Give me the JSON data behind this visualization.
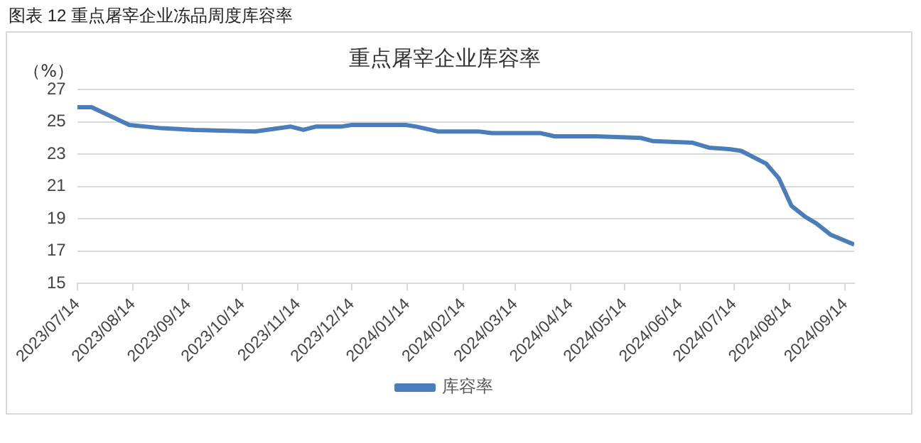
{
  "chart_data": {
    "type": "line",
    "title": "重点屠宰企业库容率",
    "ylabel": "（%）",
    "annotations": [
      "图表 12  重点屠宰企业冻品周度库容率"
    ],
    "x": [
      "2023-07-14",
      "2023-07-22",
      "2023-08-12",
      "2023-08-30",
      "2023-09-17",
      "2023-10-21",
      "2023-11-10",
      "2023-11-17",
      "2023-11-24",
      "2023-12-08",
      "2023-12-14",
      "2024-01-13",
      "2024-01-19",
      "2024-01-31",
      "2024-02-23",
      "2024-03-01",
      "2024-03-28",
      "2024-04-05",
      "2024-04-28",
      "2024-05-23",
      "2024-05-30",
      "2024-06-21",
      "2024-06-30",
      "2024-07-12",
      "2024-07-18",
      "2024-08-01",
      "2024-08-08",
      "2024-08-15",
      "2024-08-23",
      "2024-08-29",
      "2024-09-06",
      "2024-09-19"
    ],
    "series": [
      {
        "name": "库容率",
        "color": "#4a7ebb",
        "values": [
          25.9,
          25.9,
          24.8,
          24.6,
          24.5,
          24.4,
          24.7,
          24.5,
          24.7,
          24.7,
          24.8,
          24.8,
          24.7,
          24.4,
          24.4,
          24.3,
          24.3,
          24.1,
          24.1,
          24.0,
          23.8,
          23.7,
          23.4,
          23.3,
          23.2,
          22.4,
          21.5,
          19.8,
          19.1,
          18.7,
          18.0,
          17.4
        ]
      }
    ],
    "xlim": [
      "2023-07-14",
      "2024-09-19"
    ],
    "xticks": [
      {
        "value": "2023-07-14",
        "label": "2023/07/14"
      },
      {
        "value": "2023-08-14",
        "label": "2023/08/14"
      },
      {
        "value": "2023-09-14",
        "label": "2023/09/14"
      },
      {
        "value": "2023-10-14",
        "label": "2023/10/14"
      },
      {
        "value": "2023-11-14",
        "label": "2023/11/14"
      },
      {
        "value": "2023-12-14",
        "label": "2023/12/14"
      },
      {
        "value": "2024-01-14",
        "label": "2024/01/14"
      },
      {
        "value": "2024-02-14",
        "label": "2024/02/14"
      },
      {
        "value": "2024-03-14",
        "label": "2024/03/14"
      },
      {
        "value": "2024-04-14",
        "label": "2024/04/14"
      },
      {
        "value": "2024-05-14",
        "label": "2024/05/14"
      },
      {
        "value": "2024-06-14",
        "label": "2024/06/14"
      },
      {
        "value": "2024-07-14",
        "label": "2024/07/14"
      },
      {
        "value": "2024-08-14",
        "label": "2024/08/14"
      },
      {
        "value": "2024-09-14",
        "label": "2024/09/14"
      }
    ],
    "ylim": [
      15,
      27
    ],
    "yticks": [
      15,
      17,
      19,
      21,
      23,
      25,
      27
    ],
    "grid": "y",
    "legend": "bottom",
    "marker": "none",
    "line_style": "solid"
  }
}
